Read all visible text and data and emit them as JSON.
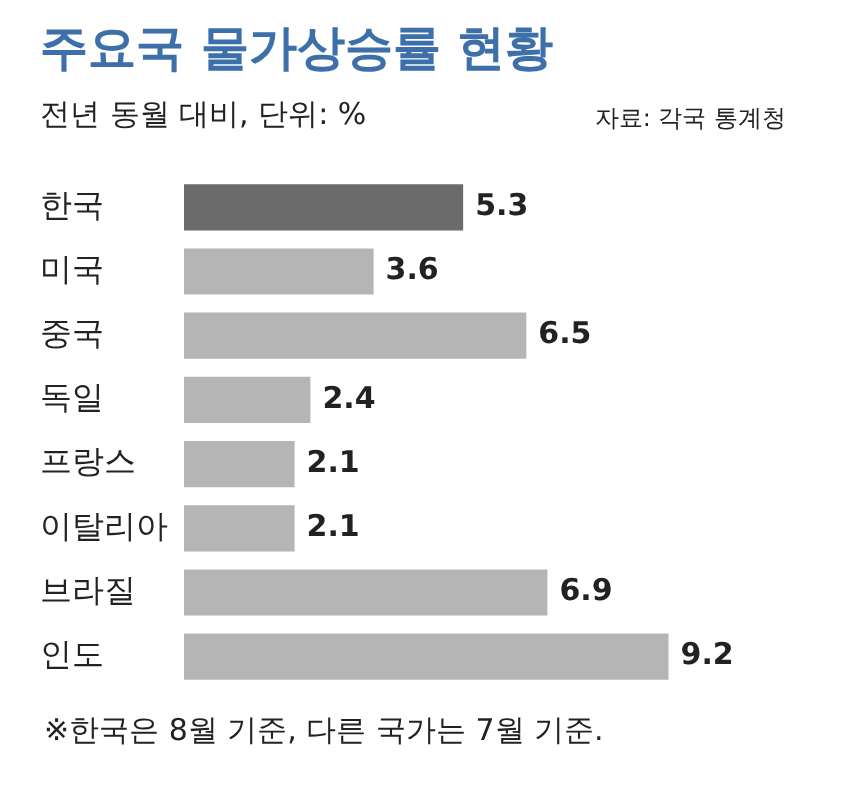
{
  "chart_data": {
    "type": "bar",
    "orientation": "horizontal",
    "title": "주요국 물가상승률 현황",
    "subtitle": "전년 동월 대비, 단위: %",
    "annotations": [
      "자료: 각국 통계청",
      "※한국은 8월 기준, 다른 국가는 7월 기준."
    ],
    "categories": [
      "한국",
      "미국",
      "중국",
      "독일",
      "프랑스",
      "이탈리아",
      "브라질",
      "인도"
    ],
    "values": [
      5.3,
      3.6,
      6.5,
      2.4,
      2.1,
      2.1,
      6.9,
      9.2
    ],
    "colors": [
      "#6b6b6b",
      "#b5b5b5",
      "#b5b5b5",
      "#b5b5b5",
      "#b5b5b5",
      "#b5b5b5",
      "#b5b5b5",
      "#b5b5b5"
    ],
    "data_labels": true
  }
}
